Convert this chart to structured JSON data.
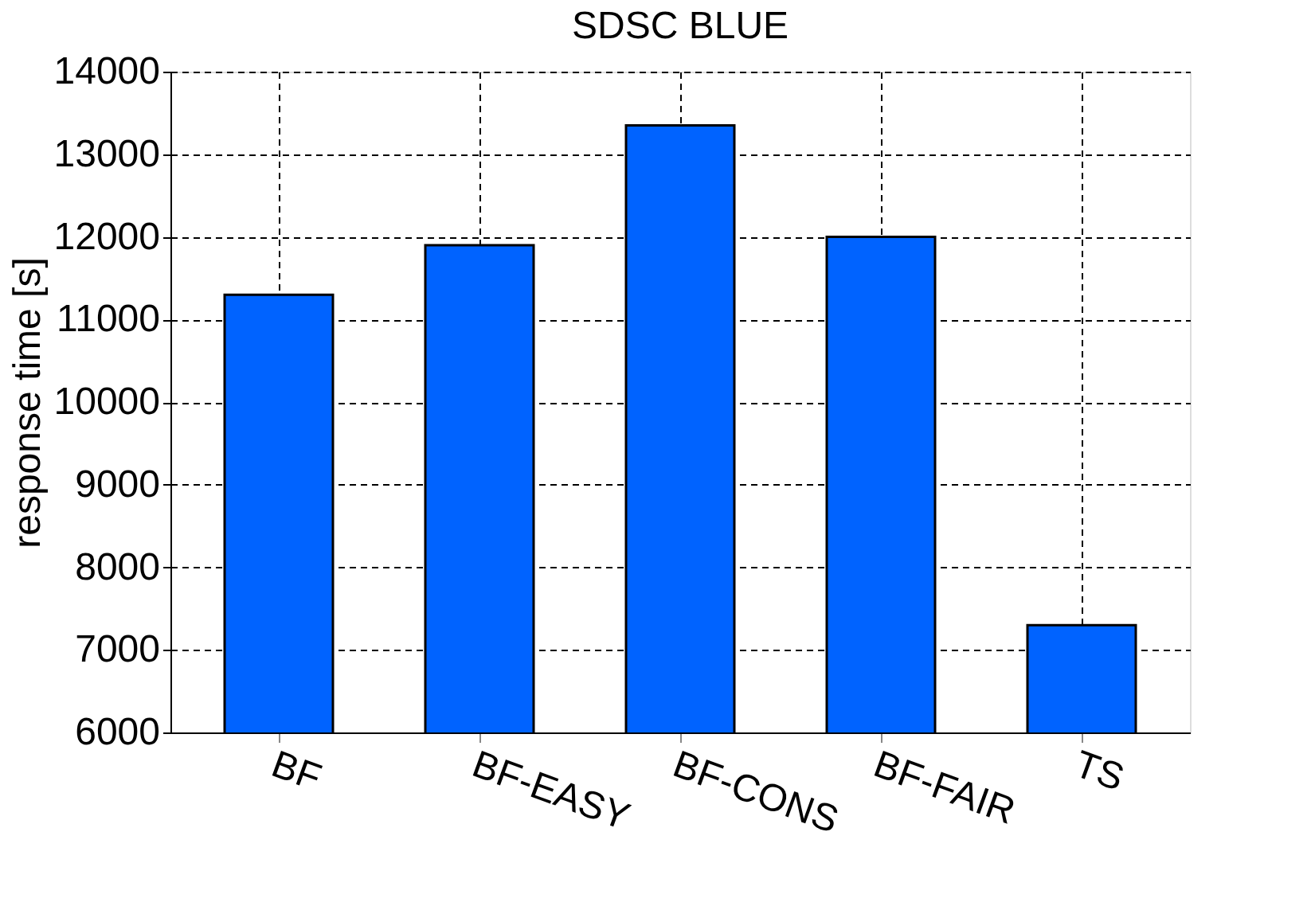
{
  "chart_data": {
    "type": "bar",
    "title": "SDSC BLUE",
    "ylabel": "response time [s]",
    "categories": [
      "BF",
      "BF-EASY",
      "BF-CONS",
      "BF-FAIR",
      "TS"
    ],
    "values": [
      11300,
      11900,
      13350,
      12000,
      7300
    ],
    "color": "#0063ff",
    "ylim": [
      6000,
      14000
    ],
    "yticks": [
      6000,
      7000,
      8000,
      9000,
      10000,
      11000,
      12000,
      13000,
      14000
    ],
    "grid": true
  }
}
